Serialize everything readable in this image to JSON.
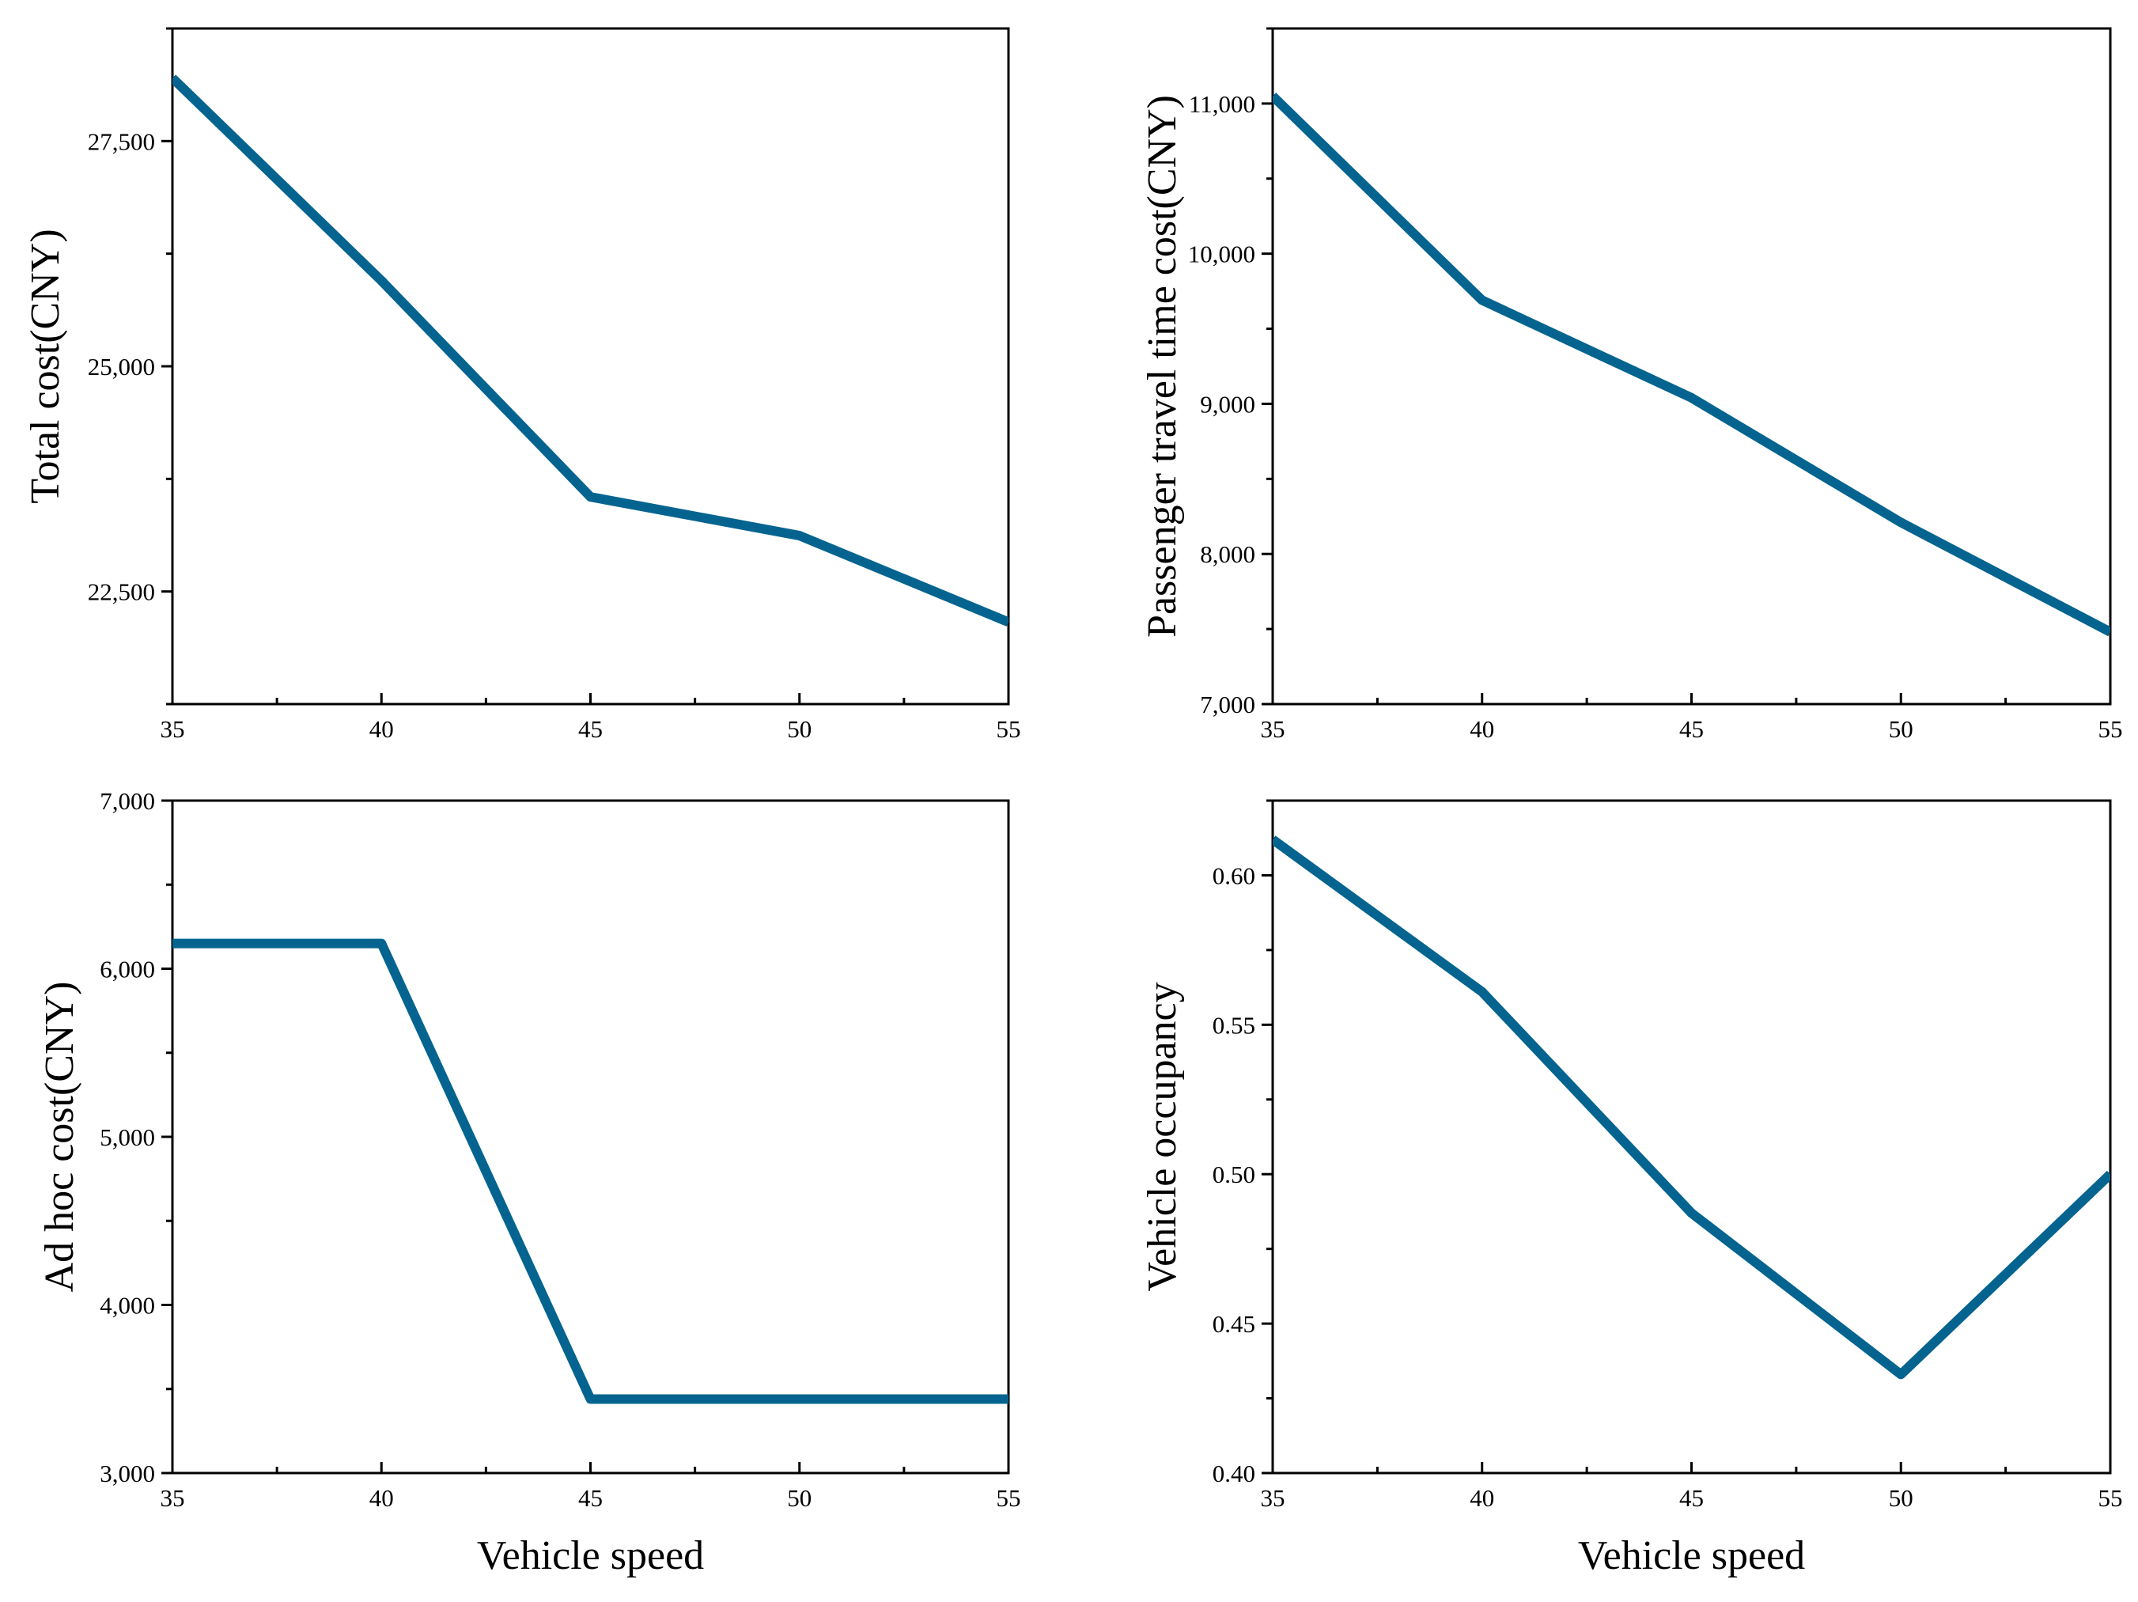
{
  "colors": {
    "series": "#04648F",
    "axis": "#000000",
    "background": "#ffffff"
  },
  "chart_data": [
    {
      "type": "line",
      "panel": "top-left",
      "x": [
        35,
        40,
        45,
        50,
        55
      ],
      "series": [
        {
          "name": "Total cost",
          "values": [
            28200,
            25950,
            23550,
            23120,
            22160
          ]
        }
      ],
      "xlim": [
        35,
        55
      ],
      "ylim": [
        21250,
        28750
      ],
      "xticks": [
        35,
        40,
        45,
        50,
        55
      ],
      "xtick_labels": [
        "35",
        "40",
        "45",
        "50",
        "55"
      ],
      "yticks": [
        22500,
        25000,
        27500
      ],
      "ytick_labels": [
        "22,500",
        "25,000",
        "27,500"
      ],
      "xlabel": "",
      "ylabel": "Total cost(CNY)"
    },
    {
      "type": "line",
      "panel": "top-right",
      "x": [
        35,
        40,
        45,
        50,
        55
      ],
      "series": [
        {
          "name": "Passenger travel time cost",
          "values": [
            11050,
            9690,
            9040,
            8210,
            7480
          ]
        }
      ],
      "xlim": [
        35,
        55
      ],
      "ylim": [
        7000,
        11500
      ],
      "xticks": [
        35,
        40,
        45,
        50,
        55
      ],
      "xtick_labels": [
        "35",
        "40",
        "45",
        "50",
        "55"
      ],
      "yticks": [
        7000,
        8000,
        9000,
        10000,
        11000
      ],
      "ytick_labels": [
        "7,000",
        "8,000",
        "9,000",
        "10,000",
        "11,000"
      ],
      "xlabel": "",
      "ylabel": "Passenger travel time cost(CNY)"
    },
    {
      "type": "line",
      "panel": "bottom-left",
      "x": [
        35,
        40,
        45,
        50,
        55
      ],
      "series": [
        {
          "name": "Ad hoc cost",
          "values": [
            6150,
            6150,
            3440,
            3440,
            3440
          ]
        }
      ],
      "xlim": [
        35,
        55
      ],
      "ylim": [
        3000,
        7000
      ],
      "xticks": [
        35,
        40,
        45,
        50,
        55
      ],
      "xtick_labels": [
        "35",
        "40",
        "45",
        "50",
        "55"
      ],
      "yticks": [
        3000,
        4000,
        5000,
        6000,
        7000
      ],
      "ytick_labels": [
        "3,000",
        "4,000",
        "5,000",
        "6,000",
        "7,000"
      ],
      "xlabel": "Vehicle speed",
      "ylabel": "Ad hoc cost(CNY)"
    },
    {
      "type": "line",
      "panel": "bottom-right",
      "x": [
        35,
        40,
        45,
        50,
        55
      ],
      "series": [
        {
          "name": "Vehicle occupancy",
          "values": [
            0.612,
            0.561,
            0.487,
            0.433,
            0.5
          ]
        }
      ],
      "xlim": [
        35,
        55
      ],
      "ylim": [
        0.4,
        0.625
      ],
      "xticks": [
        35,
        40,
        45,
        50,
        55
      ],
      "xtick_labels": [
        "35",
        "40",
        "45",
        "50",
        "55"
      ],
      "yticks": [
        0.4,
        0.45,
        0.5,
        0.55,
        0.6
      ],
      "ytick_labels": [
        "0.40",
        "0.45",
        "0.50",
        "0.55",
        "0.60"
      ],
      "xlabel": "Vehicle speed",
      "ylabel": "Vehicle occupancy"
    }
  ]
}
